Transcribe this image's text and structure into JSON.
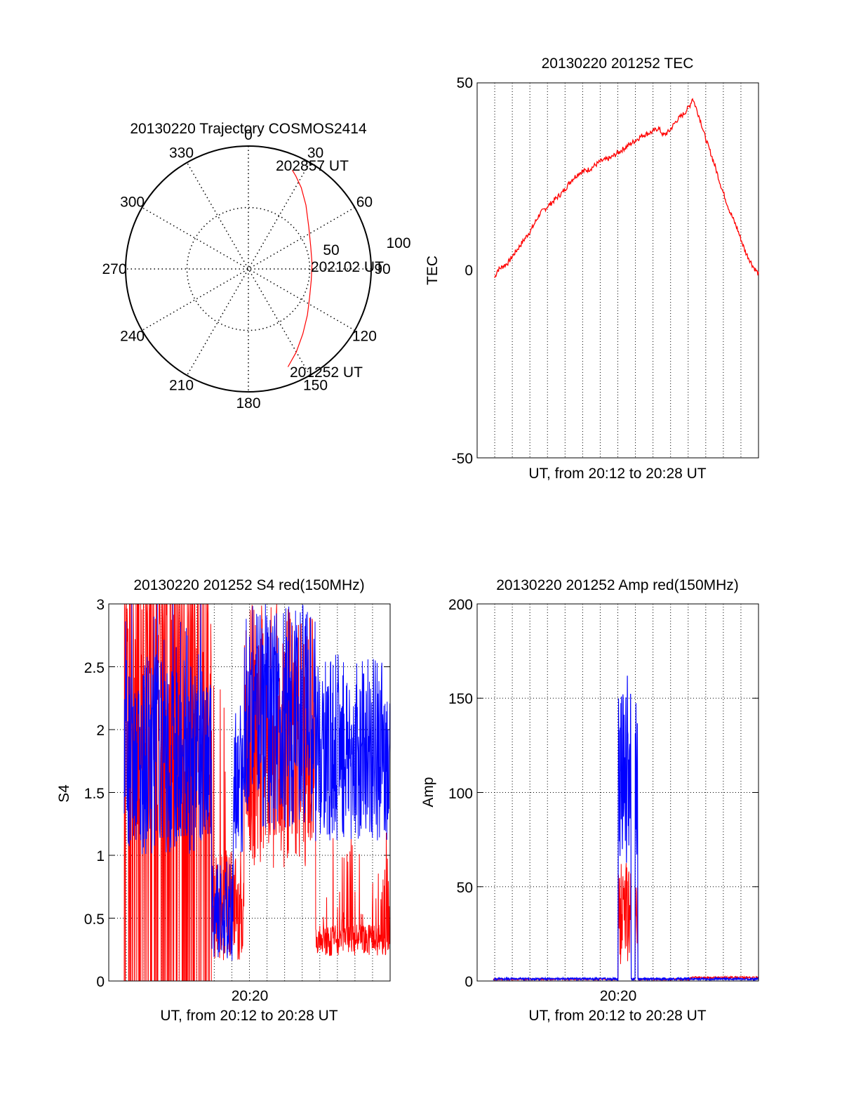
{
  "chart_data": [
    {
      "type": "polar",
      "title": "20130220 Trajectory COSMOS2414",
      "azimuth_labels": [
        "0",
        "30",
        "60",
        "90",
        "120",
        "150",
        "180",
        "210",
        "240",
        "270",
        "300",
        "330"
      ],
      "radial_labels": [
        "50",
        "100"
      ],
      "rlim": [
        0,
        100
      ],
      "series": [
        {
          "color": "#ff0000",
          "points": [
            {
              "az": 158,
              "r": 86
            },
            {
              "az": 150,
              "r": 78
            },
            {
              "az": 140,
              "r": 69
            },
            {
              "az": 128,
              "r": 61
            },
            {
              "az": 115,
              "r": 55
            },
            {
              "az": 100,
              "r": 52
            },
            {
              "az": 85,
              "r": 52
            },
            {
              "az": 70,
              "r": 54
            },
            {
              "az": 55,
              "r": 60
            },
            {
              "az": 42,
              "r": 70
            },
            {
              "az": 33,
              "r": 79
            },
            {
              "az": 27,
              "r": 85
            },
            {
              "az": 24,
              "r": 88
            }
          ]
        }
      ],
      "annotations": [
        {
          "text": "202857 UT",
          "az": 24,
          "r": 88
        },
        {
          "text": "202102 UT",
          "az": 85,
          "r": 52
        },
        {
          "text": "201252 UT",
          "az": 158,
          "r": 86
        }
      ],
      "grid": true
    },
    {
      "type": "line",
      "title": "20130220 201252 TEC",
      "xlabel": "UT, from 20:12 to 20:28 UT",
      "ylabel": "TEC",
      "ylim": [
        -50,
        50
      ],
      "yticks": [
        "50",
        "0",
        "-50"
      ],
      "grid": true,
      "series": [
        {
          "color": "#ff0000",
          "points": [
            [
              0.0,
              -2
            ],
            [
              0.01,
              0
            ],
            [
              0.03,
              1
            ],
            [
              0.05,
              2
            ],
            [
              0.08,
              5
            ],
            [
              0.11,
              8
            ],
            [
              0.14,
              11
            ],
            [
              0.17,
              15
            ],
            [
              0.2,
              17
            ],
            [
              0.23,
              19
            ],
            [
              0.26,
              21
            ],
            [
              0.29,
              24
            ],
            [
              0.32,
              26
            ],
            [
              0.36,
              27
            ],
            [
              0.4,
              29
            ],
            [
              0.44,
              30
            ],
            [
              0.48,
              32
            ],
            [
              0.52,
              34
            ],
            [
              0.56,
              36
            ],
            [
              0.6,
              37
            ],
            [
              0.62,
              38
            ],
            [
              0.64,
              36
            ],
            [
              0.66,
              37
            ],
            [
              0.69,
              40
            ],
            [
              0.72,
              42
            ],
            [
              0.74,
              44
            ],
            [
              0.75,
              46
            ],
            [
              0.76,
              44
            ],
            [
              0.78,
              40
            ],
            [
              0.8,
              35
            ],
            [
              0.83,
              29
            ],
            [
              0.86,
              22
            ],
            [
              0.89,
              16
            ],
            [
              0.92,
              11
            ],
            [
              0.95,
              5
            ],
            [
              0.98,
              1
            ],
            [
              1.0,
              -1
            ]
          ]
        }
      ]
    },
    {
      "type": "line",
      "title": "20130220 201252 S4 red(150MHz)",
      "xlabel": "UT, from 20:12 to 20:28 UT",
      "ylabel": "S4",
      "ylim": [
        0,
        3
      ],
      "yticks": [
        "3",
        "2.5",
        "2",
        "1.5",
        "1",
        "0.5",
        "0"
      ],
      "xtick_label": "20:20",
      "grid": true,
      "series": [
        {
          "color": "#ff0000",
          "description": "S4 red"
        },
        {
          "color": "#0000ff",
          "description": "S4 blue"
        }
      ]
    },
    {
      "type": "line",
      "title": "20130220 201252 Amp red(150MHz)",
      "xlabel": "UT, from 20:12 to 20:28 UT",
      "ylabel": "Amp",
      "ylim": [
        0,
        200
      ],
      "yticks": [
        "200",
        "150",
        "100",
        "50",
        "0"
      ],
      "xtick_label": "20:20",
      "grid": true,
      "series": [
        {
          "color": "#ff0000"
        },
        {
          "color": "#0000ff"
        }
      ]
    }
  ]
}
